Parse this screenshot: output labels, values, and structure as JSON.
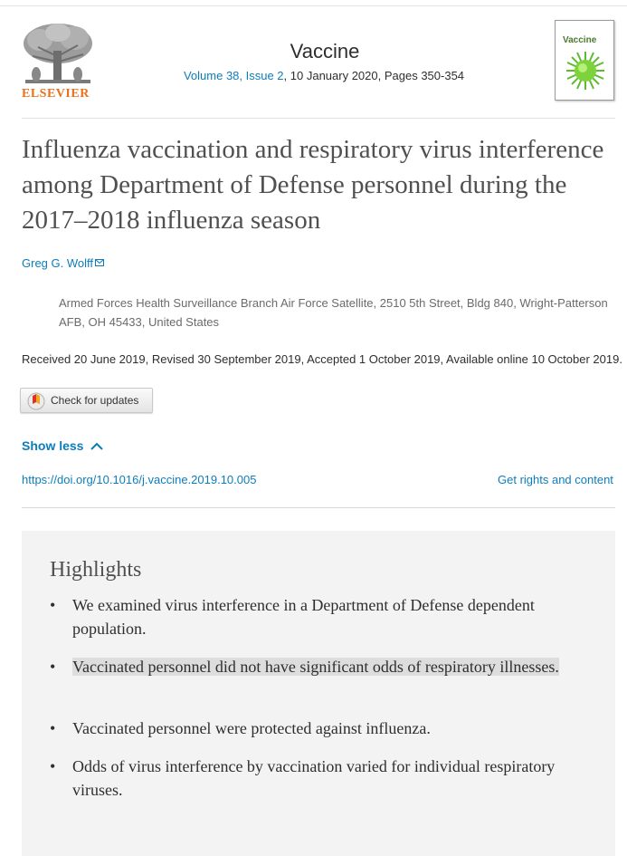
{
  "header": {
    "publisher": "ELSEVIER",
    "journal": "Vaccine",
    "volume_issue": "Volume 38, Issue 2",
    "date_pages": ", 10 January 2020, Pages 350-354",
    "cover_label": "Vaccine"
  },
  "article": {
    "title": "Influenza vaccination and respiratory virus interference among Department of Defense personnel during the 2017–2018 influenza season",
    "author": "Greg G. Wolff",
    "affiliation": "Armed Forces Health Surveillance Branch Air Force Satellite, 2510 5th Street, Bldg 840, Wright-Patterson AFB, OH 45433, United States",
    "history": "Received 20 June 2019, Revised 30 September 2019, Accepted 1 October 2019, Available online 10 October 2019.",
    "check_updates": "Check for updates",
    "show_less": "Show less",
    "doi": "https://doi.org/10.1016/j.vaccine.2019.10.005",
    "rights": "Get rights and content"
  },
  "highlights": {
    "heading": "Highlights",
    "items": [
      "We examined virus interference in a Department of Defense dependent population.",
      "Vaccinated personnel did not have significant odds of respiratory illnesses.",
      "Vaccinated personnel were protected against influenza.",
      "Odds of virus interference by vaccination varied for individual respiratory viruses."
    ],
    "bullet": "•"
  },
  "icons": [
    "elsevier-tree-logo",
    "mail-icon",
    "check-updates-icon",
    "chevron-up-icon",
    "virus-cover-icon"
  ],
  "colors": {
    "link": "#0c7dbb",
    "publisher": "#e9711c",
    "highlight_bg": "#f3f3f3",
    "selection": "#dddddd"
  }
}
